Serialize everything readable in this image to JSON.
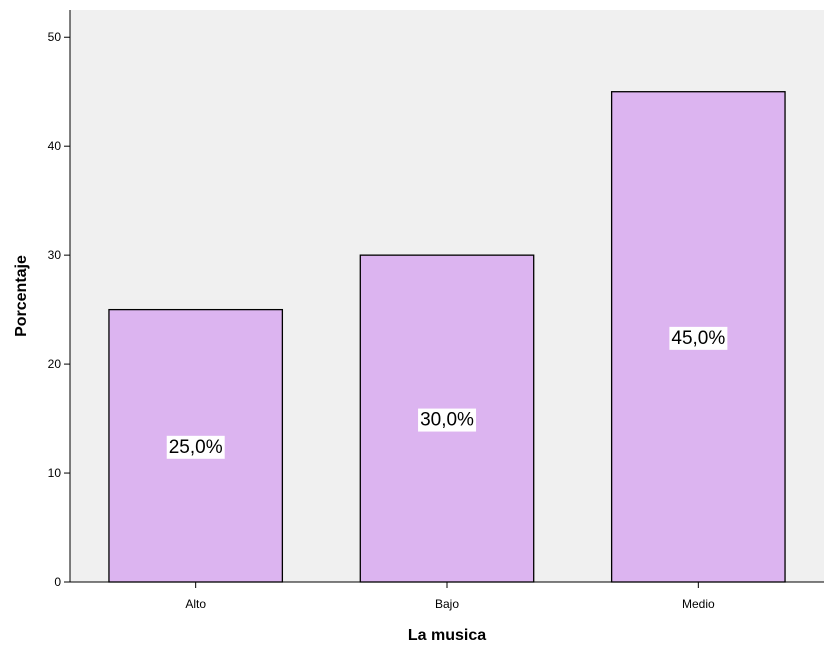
{
  "chart_data": {
    "type": "bar",
    "categories": [
      "Alto",
      "Bajo",
      "Medio"
    ],
    "values": [
      25,
      30,
      45
    ],
    "data_labels": [
      "25,0%",
      "30,0%",
      "45,0%"
    ],
    "title": "",
    "xlabel": "La musica",
    "ylabel": "Porcentaje",
    "ylim": [
      0,
      52.5
    ],
    "yticks": [
      0,
      10,
      20,
      30,
      40,
      50
    ],
    "grid": false,
    "legend": "none",
    "colors": {
      "plot_background": "#f0f0f0",
      "bar_fill": "#dcb4f0",
      "bar_stroke": "#000000",
      "axis": "#000000"
    }
  }
}
